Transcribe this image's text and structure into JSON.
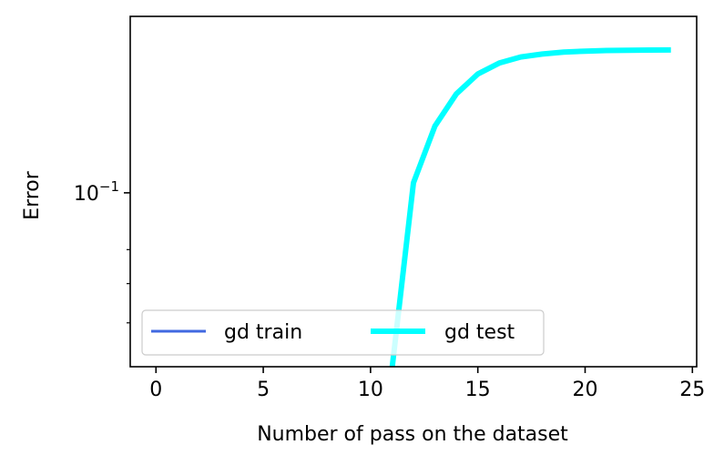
{
  "chart_data": {
    "type": "line",
    "xlabel": "Number of pass on the dataset",
    "ylabel": "Error",
    "xlim": [
      -1.2,
      25.2
    ],
    "xticks": [
      {
        "value": 0,
        "label": "0"
      },
      {
        "value": 5,
        "label": "5"
      },
      {
        "value": 10,
        "label": "10"
      },
      {
        "value": 15,
        "label": "15"
      },
      {
        "value": 20,
        "label": "20"
      },
      {
        "value": 25,
        "label": "25"
      }
    ],
    "yscale": "log",
    "ylim": [
      0.0505,
      0.2
    ],
    "yticks_major": [
      {
        "value": 0.1,
        "base": "10",
        "exponent": "−1"
      }
    ],
    "yticks_minor": [
      0.08,
      0.07,
      0.06
    ],
    "grid": false,
    "legend": {
      "placement": "lower-left",
      "columns": 2
    },
    "series": [
      {
        "name": "gd train",
        "color": "#4169e1",
        "x": [],
        "y": []
      },
      {
        "name": "gd test",
        "color": "#00ffff",
        "x": [
          11,
          12,
          13,
          14,
          15,
          16,
          17,
          18,
          19,
          20,
          21,
          22,
          23,
          24
        ],
        "y": [
          0.05,
          0.104,
          0.13,
          0.1475,
          0.1595,
          0.1665,
          0.1705,
          0.1725,
          0.1738,
          0.1745,
          0.1749,
          0.1751,
          0.1752,
          0.1753
        ]
      }
    ]
  }
}
